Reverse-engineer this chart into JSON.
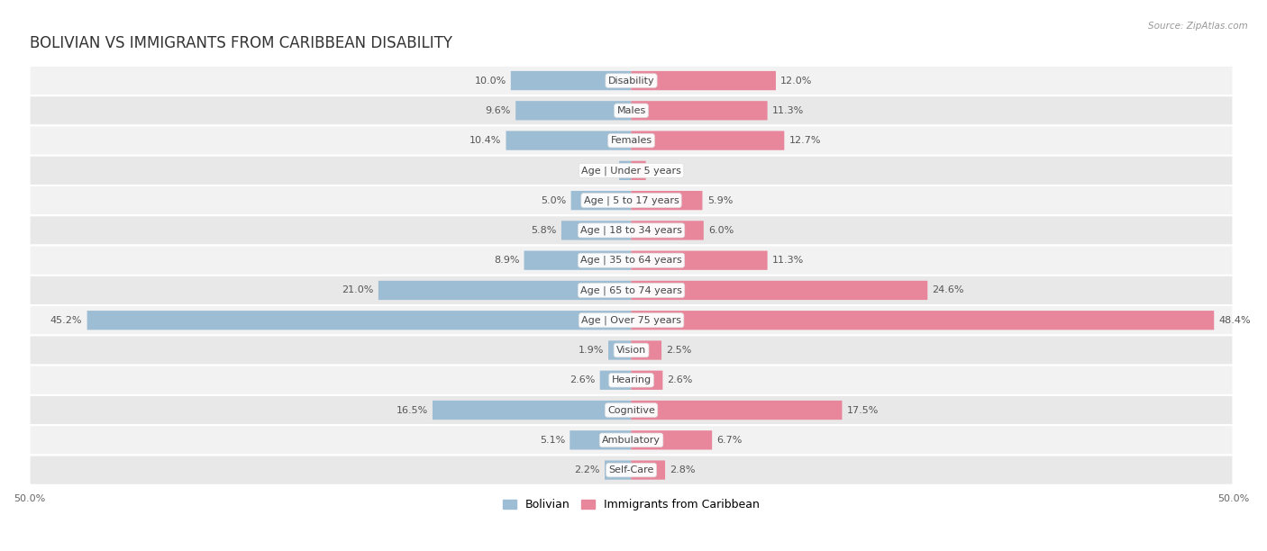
{
  "title": "BOLIVIAN VS IMMIGRANTS FROM CARIBBEAN DISABILITY",
  "source": "Source: ZipAtlas.com",
  "categories": [
    "Disability",
    "Males",
    "Females",
    "Age | Under 5 years",
    "Age | 5 to 17 years",
    "Age | 18 to 34 years",
    "Age | 35 to 64 years",
    "Age | 65 to 74 years",
    "Age | Over 75 years",
    "Vision",
    "Hearing",
    "Cognitive",
    "Ambulatory",
    "Self-Care"
  ],
  "bolivian": [
    10.0,
    9.6,
    10.4,
    1.0,
    5.0,
    5.8,
    8.9,
    21.0,
    45.2,
    1.9,
    2.6,
    16.5,
    5.1,
    2.2
  ],
  "caribbean": [
    12.0,
    11.3,
    12.7,
    1.2,
    5.9,
    6.0,
    11.3,
    24.6,
    48.4,
    2.5,
    2.6,
    17.5,
    6.7,
    2.8
  ],
  "bolivian_color": "#9dbdd4",
  "caribbean_color": "#e8879c",
  "axis_max": 50.0,
  "row_bg_even": "#f2f2f2",
  "row_bg_odd": "#e8e8e8",
  "title_fontsize": 12,
  "label_fontsize": 8,
  "value_fontsize": 8,
  "legend_fontsize": 9
}
